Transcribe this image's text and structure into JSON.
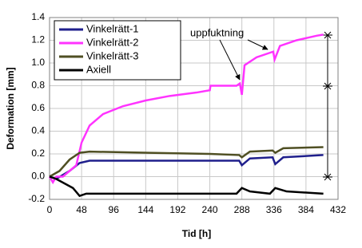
{
  "chart_data": {
    "type": "line",
    "xlabel": "Tid [h]",
    "ylabel": "Deformation [mm]",
    "xlim": [
      0,
      432
    ],
    "xticks": [
      0,
      48,
      96,
      144,
      192,
      240,
      288,
      336,
      384,
      432
    ],
    "ylim": [
      -0.2,
      1.4
    ],
    "yticks": [
      -0.2,
      {
        "value": 0,
        "label": "0.0"
      },
      0.2,
      0.4,
      0.6,
      0.8,
      {
        "value": 1,
        "label": "1.0"
      },
      1.2,
      1.4
    ],
    "grid": true,
    "legend": "upper left",
    "annotation": "uppfuktning",
    "series": [
      {
        "name": "Vinkelrätt-1",
        "color": "#1f1f8c",
        "x": [
          0,
          10,
          30,
          45,
          60,
          150,
          284,
          288,
          300,
          334,
          338,
          350,
          410
        ],
        "values": [
          0,
          -0.02,
          0.05,
          0.12,
          0.14,
          0.14,
          0.14,
          0.1,
          0.16,
          0.17,
          0.11,
          0.17,
          0.19
        ]
      },
      {
        "name": "Vinkelrätt-2",
        "color": "#ff33ff",
        "x": [
          0,
          5,
          10,
          20,
          30,
          40,
          48,
          60,
          80,
          110,
          144,
          180,
          220,
          240,
          241,
          280,
          285,
          288,
          292,
          310,
          335,
          337,
          345,
          370,
          400,
          410
        ],
        "values": [
          0,
          -0.05,
          0,
          0,
          0.05,
          0.1,
          0.3,
          0.45,
          0.55,
          0.62,
          0.67,
          0.71,
          0.74,
          0.76,
          0.8,
          0.8,
          0.82,
          0.72,
          0.98,
          1.05,
          1.1,
          1.03,
          1.15,
          1.2,
          1.24,
          1.25
        ]
      },
      {
        "name": "Vinkelrätt-3",
        "color": "#4f4f23",
        "x": [
          0,
          15,
          30,
          45,
          60,
          150,
          240,
          284,
          288,
          300,
          334,
          338,
          350,
          410
        ],
        "values": [
          0,
          0.05,
          0.15,
          0.21,
          0.22,
          0.21,
          0.2,
          0.19,
          0.17,
          0.22,
          0.23,
          0.21,
          0.25,
          0.26
        ]
      },
      {
        "name": "Axiell",
        "color": "#000000",
        "x": [
          0,
          10,
          35,
          45,
          55,
          150,
          280,
          288,
          300,
          330,
          338,
          355,
          410
        ],
        "values": [
          0,
          -0.02,
          -0.1,
          -0.17,
          -0.15,
          -0.15,
          -0.15,
          -0.1,
          -0.13,
          -0.15,
          -0.1,
          -0.13,
          -0.15
        ]
      }
    ]
  }
}
